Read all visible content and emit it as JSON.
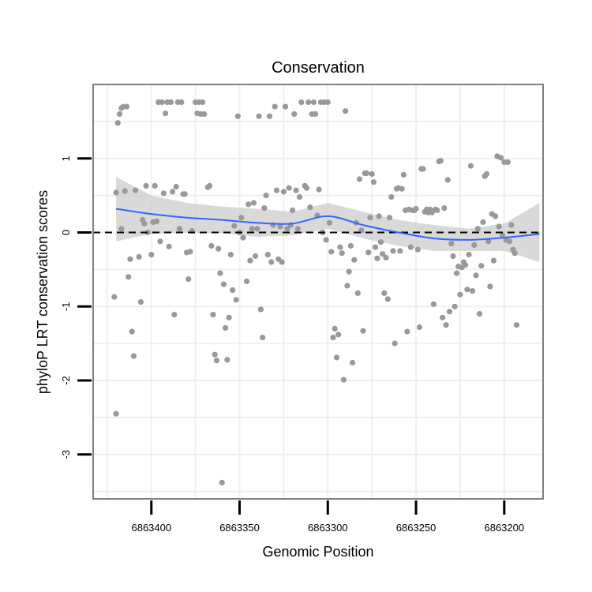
{
  "chart_data": {
    "type": "scatter",
    "title": "Conservation",
    "xlabel": "Genomic Position",
    "ylabel": "phyloP LRT conservation scores",
    "x_reversed": true,
    "xlim": [
      6863433,
      6863178
    ],
    "ylim": [
      -3.6,
      2.0
    ],
    "x_ticks": [
      6863400,
      6863350,
      6863300,
      6863250,
      6863200
    ],
    "x_tick_labels": [
      "6863400",
      "6863350",
      "6863300",
      "6863250",
      "6863200"
    ],
    "y_ticks": [
      -3,
      -2,
      -1,
      0,
      1
    ],
    "y_tick_labels": [
      "-3",
      "-2",
      "-1",
      "0",
      "1"
    ],
    "reference_line": 0,
    "colors": {
      "points": "#999999",
      "smooth_line": "#3366ff",
      "confidence_band": "#cccccc",
      "reference": "#000000",
      "panel_border": "#7f7f7f",
      "grid": "#f0f0f0"
    },
    "series": [
      {
        "name": "scores",
        "points": [
          [
            6863421,
            -0.87
          ],
          [
            6863420,
            -2.45
          ],
          [
            6863420,
            0.54
          ],
          [
            6863419,
            1.48
          ],
          [
            6863418,
            1.6
          ],
          [
            6863417,
            0.05
          ],
          [
            6863417,
            1.68
          ],
          [
            6863416,
            1.7
          ],
          [
            6863415,
            0.56
          ],
          [
            6863414,
            1.7
          ],
          [
            6863413,
            -0.6
          ],
          [
            6863412,
            -0.36
          ],
          [
            6863411,
            -1.34
          ],
          [
            6863410,
            -1.67
          ],
          [
            6863409,
            0.57
          ],
          [
            6863407,
            -0.33
          ],
          [
            6863406,
            -0.94
          ],
          [
            6863405,
            0.17
          ],
          [
            6863404,
            0.12
          ],
          [
            6863403,
            0.63
          ],
          [
            6863402,
            0.0
          ],
          [
            6863400,
            -0.3
          ],
          [
            6863399,
            0.14
          ],
          [
            6863398,
            0.63
          ],
          [
            6863397,
            0.15
          ],
          [
            6863396,
            1.76
          ],
          [
            6863395,
            -0.12
          ],
          [
            6863394,
            1.76
          ],
          [
            6863393,
            0.53
          ],
          [
            6863392,
            1.61
          ],
          [
            6863391,
            1.76
          ],
          [
            6863390,
            -0.19
          ],
          [
            6863389,
            1.76
          ],
          [
            6863388,
            0.55
          ],
          [
            6863387,
            -1.11
          ],
          [
            6863386,
            0.62
          ],
          [
            6863385,
            1.76
          ],
          [
            6863384,
            0.05
          ],
          [
            6863383,
            1.76
          ],
          [
            6863382,
            0.52
          ],
          [
            6863381,
            0.52
          ],
          [
            6863380,
            -0.27
          ],
          [
            6863379,
            -0.63
          ],
          [
            6863378,
            -0.26
          ],
          [
            6863377,
            0.02
          ],
          [
            6863375,
            1.76
          ],
          [
            6863374,
            1.61
          ],
          [
            6863373,
            1.76
          ],
          [
            6863372,
            1.6
          ],
          [
            6863371,
            1.76
          ],
          [
            6863370,
            1.6
          ],
          [
            6863368,
            0.61
          ],
          [
            6863367,
            0.63
          ],
          [
            6863366,
            -0.18
          ],
          [
            6863365,
            -1.11
          ],
          [
            6863364,
            -1.65
          ],
          [
            6863363,
            -1.73
          ],
          [
            6863362,
            -0.22
          ],
          [
            6863361,
            -0.55
          ],
          [
            6863360,
            -3.38
          ],
          [
            6863359,
            -0.7
          ],
          [
            6863358,
            -1.29
          ],
          [
            6863357,
            -1.72
          ],
          [
            6863356,
            -1.15
          ],
          [
            6863355,
            -0.3
          ],
          [
            6863354,
            -0.78
          ],
          [
            6863353,
            0.09
          ],
          [
            6863352,
            -0.91
          ],
          [
            6863351,
            1.57
          ],
          [
            6863350,
            0.0
          ],
          [
            6863349,
            0.2
          ],
          [
            6863348,
            -0.07
          ],
          [
            6863346,
            -0.66
          ],
          [
            6863345,
            0.38
          ],
          [
            6863344,
            -0.38
          ],
          [
            6863343,
            0.05
          ],
          [
            6863342,
            0.4
          ],
          [
            6863341,
            -0.32
          ],
          [
            6863340,
            0.05
          ],
          [
            6863339,
            1.57
          ],
          [
            6863338,
            -1.04
          ],
          [
            6863337,
            -1.42
          ],
          [
            6863336,
            0.33
          ],
          [
            6863335,
            0.5
          ],
          [
            6863334,
            -0.3
          ],
          [
            6863333,
            1.57
          ],
          [
            6863332,
            -0.4
          ],
          [
            6863331,
            0.1
          ],
          [
            6863330,
            1.7
          ],
          [
            6863329,
            0.57
          ],
          [
            6863328,
            -0.36
          ],
          [
            6863327,
            0.08
          ],
          [
            6863326,
            -0.4
          ],
          [
            6863325,
            0.55
          ],
          [
            6863324,
            1.7
          ],
          [
            6863323,
            0.05
          ],
          [
            6863322,
            0.6
          ],
          [
            6863321,
            0.1
          ],
          [
            6863320,
            0.3
          ],
          [
            6863319,
            1.6
          ],
          [
            6863318,
            0.57
          ],
          [
            6863317,
            0.05
          ],
          [
            6863316,
            0.48
          ],
          [
            6863315,
            1.76
          ],
          [
            6863313,
            0.63
          ],
          [
            6863312,
            0.6
          ],
          [
            6863311,
            1.76
          ],
          [
            6863310,
            0.34
          ],
          [
            6863309,
            1.6
          ],
          [
            6863308,
            1.76
          ],
          [
            6863307,
            1.6
          ],
          [
            6863306,
            0.23
          ],
          [
            6863305,
            0.58
          ],
          [
            6863304,
            1.76
          ],
          [
            6863303,
            0.0
          ],
          [
            6863302,
            1.76
          ],
          [
            6863301,
            -0.1
          ],
          [
            6863300,
            1.76
          ],
          [
            6863299,
            0.13
          ],
          [
            6863298,
            -0.26
          ],
          [
            6863297,
            -1.42
          ],
          [
            6863296,
            -1.3
          ],
          [
            6863295,
            -1.69
          ],
          [
            6863294,
            -1.38
          ],
          [
            6863293,
            -0.2
          ],
          [
            6863292,
            -0.28
          ],
          [
            6863291,
            -1.99
          ],
          [
            6863290,
            1.64
          ],
          [
            6863289,
            -0.72
          ],
          [
            6863288,
            -0.53
          ],
          [
            6863287,
            -0.18
          ],
          [
            6863286,
            -1.76
          ],
          [
            6863285,
            -0.37
          ],
          [
            6863284,
            0.13
          ],
          [
            6863283,
            -0.82
          ],
          [
            6863282,
            0.72
          ],
          [
            6863281,
            0.03
          ],
          [
            6863280,
            -1.33
          ],
          [
            6863279,
            0.8
          ],
          [
            6863278,
            0.8
          ],
          [
            6863277,
            -0.27
          ],
          [
            6863276,
            0.2
          ],
          [
            6863275,
            0.79
          ],
          [
            6863274,
            0.68
          ],
          [
            6863273,
            -0.2
          ],
          [
            6863272,
            -0.35
          ],
          [
            6863271,
            0.22
          ],
          [
            6863270,
            -0.13
          ],
          [
            6863269,
            -0.29
          ],
          [
            6863268,
            -0.82
          ],
          [
            6863267,
            -0.34
          ],
          [
            6863266,
            -0.9
          ],
          [
            6863265,
            0.2
          ],
          [
            6863264,
            0.48
          ],
          [
            6863263,
            -0.25
          ],
          [
            6863262,
            -1.5
          ],
          [
            6863261,
            0.59
          ],
          [
            6863260,
            0.6
          ],
          [
            6863259,
            -0.25
          ],
          [
            6863258,
            0.59
          ],
          [
            6863257,
            0.78
          ],
          [
            6863256,
            0.3
          ],
          [
            6863255,
            -1.34
          ],
          [
            6863254,
            0.31
          ],
          [
            6863253,
            -0.2
          ],
          [
            6863252,
            0.3
          ],
          [
            6863251,
            0.3
          ],
          [
            6863250,
            0.32
          ],
          [
            6863249,
            -0.23
          ],
          [
            6863248,
            -1.28
          ],
          [
            6863247,
            0.86
          ],
          [
            6863246,
            0.86
          ],
          [
            6863245,
            0.28
          ],
          [
            6863244,
            0.31
          ],
          [
            6863243,
            0.27
          ],
          [
            6863242,
            0.31
          ],
          [
            6863241,
            0.27
          ],
          [
            6863240,
            -0.97
          ],
          [
            6863239,
            0.31
          ],
          [
            6863238,
            0.3
          ],
          [
            6863237,
            0.96
          ],
          [
            6863236,
            0.97
          ],
          [
            6863235,
            -1.15
          ],
          [
            6863234,
            0.33
          ],
          [
            6863233,
            -1.25
          ],
          [
            6863232,
            0.71
          ],
          [
            6863231,
            -1.07
          ],
          [
            6863230,
            -0.15
          ],
          [
            6863229,
            -0.32
          ],
          [
            6863228,
            -1.0
          ],
          [
            6863227,
            -0.55
          ],
          [
            6863226,
            -0.46
          ],
          [
            6863225,
            -0.84
          ],
          [
            6863224,
            -0.47
          ],
          [
            6863223,
            -0.4
          ],
          [
            6863222,
            -0.44
          ],
          [
            6863221,
            -0.77
          ],
          [
            6863220,
            -0.3
          ],
          [
            6863219,
            0.9
          ],
          [
            6863218,
            -0.79
          ],
          [
            6863217,
            -0.17
          ],
          [
            6863216,
            -0.58
          ],
          [
            6863215,
            0.05
          ],
          [
            6863214,
            -1.1
          ],
          [
            6863213,
            -0.45
          ],
          [
            6863212,
            0.14
          ],
          [
            6863211,
            0.76
          ],
          [
            6863210,
            0.79
          ],
          [
            6863209,
            -0.12
          ],
          [
            6863208,
            -0.73
          ],
          [
            6863207,
            0.25
          ],
          [
            6863206,
            -0.38
          ],
          [
            6863205,
            0.22
          ],
          [
            6863204,
            1.03
          ],
          [
            6863203,
            0.08
          ],
          [
            6863202,
            1.01
          ],
          [
            6863201,
            -0.04
          ],
          [
            6863200,
            0.95
          ],
          [
            6863199,
            -0.1
          ],
          [
            6863198,
            0.95
          ],
          [
            6863197,
            -0.12
          ],
          [
            6863196,
            0.1
          ],
          [
            6863195,
            -0.23
          ],
          [
            6863194,
            -0.28
          ],
          [
            6863193,
            -1.25
          ]
        ]
      }
    ],
    "smooth": {
      "x": [
        6863420,
        6863400,
        6863380,
        6863360,
        6863340,
        6863320,
        6863300,
        6863280,
        6863260,
        6863240,
        6863220,
        6863200,
        6863180
      ],
      "y": [
        0.32,
        0.25,
        0.2,
        0.17,
        0.13,
        0.12,
        0.22,
        0.1,
        0.0,
        -0.08,
        -0.1,
        -0.07,
        -0.02
      ],
      "lower": [
        -0.12,
        -0.02,
        0.0,
        -0.01,
        -0.06,
        -0.04,
        0.05,
        -0.08,
        -0.18,
        -0.25,
        -0.25,
        -0.25,
        -0.4
      ],
      "upper": [
        0.75,
        0.5,
        0.4,
        0.35,
        0.32,
        0.28,
        0.4,
        0.28,
        0.17,
        0.1,
        0.05,
        0.12,
        0.4
      ]
    }
  }
}
